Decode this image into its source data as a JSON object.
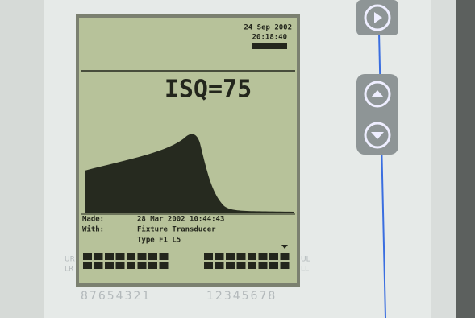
{
  "screen": {
    "date": "24 Sep 2002",
    "time": "20:18:40",
    "reading": "ISQ=75",
    "made_label": "Made:",
    "made_value": "28 Mar 2002 10:44:43",
    "with_label": "With:",
    "with_value": "Fixture Transducer",
    "type_value": "Type F1 L5"
  },
  "side_labels": {
    "left_upper": "UR",
    "left_lower": "LR",
    "right_upper": "UL",
    "right_lower": "LL"
  },
  "scale": {
    "left": "87654321",
    "right": "12345678"
  }
}
